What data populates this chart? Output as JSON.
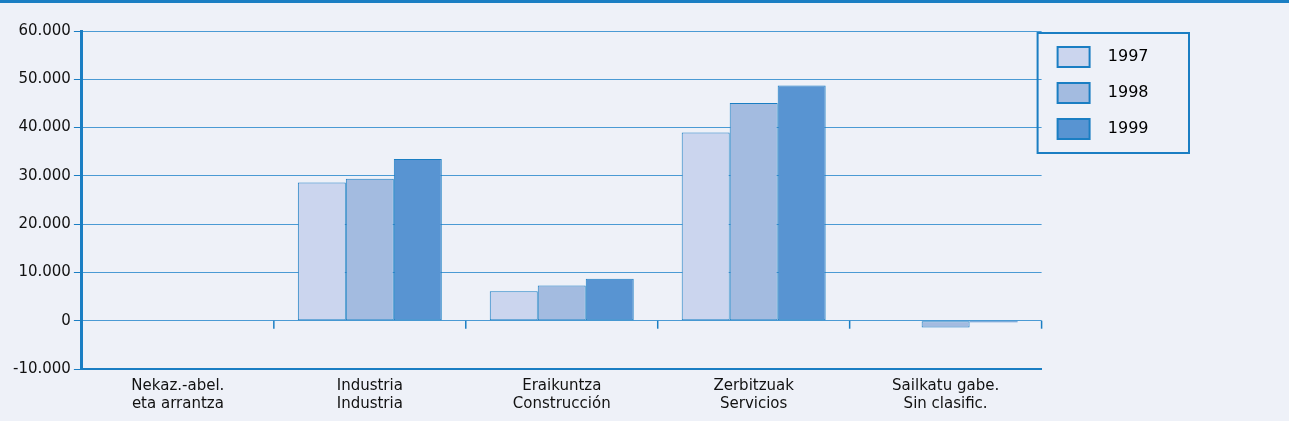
{
  "chart_data": {
    "type": "bar",
    "categories": [
      "Nekaz.-abel.\neta arrantza",
      "Industria\nIndustria",
      "Eraikuntza\nConstrucción",
      "Zerbitzuak\nServicios",
      "Sailkatu gabe.\nSin clasific."
    ],
    "series": [
      {
        "name": "1997",
        "color": "#cbd5ee",
        "values": [
          null,
          28600,
          6100,
          39000,
          null
        ]
      },
      {
        "name": "1998",
        "color": "#a3bbe0",
        "values": [
          null,
          29400,
          7300,
          45100,
          -1400
        ]
      },
      {
        "name": "1999",
        "color": "#5894d2",
        "values": [
          null,
          33500,
          8700,
          48700,
          -300
        ]
      }
    ],
    "ylim": [
      -10000,
      60000
    ],
    "yticks": [
      {
        "value": -10000,
        "label": "-10.000"
      },
      0,
      {
        "value": 10000,
        "label": "10.000"
      },
      {
        "value": 20000,
        "label": "20.000"
      },
      {
        "value": 30000,
        "label": "30.000"
      },
      {
        "value": 40000,
        "label": "40.000"
      },
      {
        "value": 50000,
        "label": "50.000"
      },
      {
        "value": 60000,
        "label": "60.000"
      }
    ],
    "grid": "y",
    "legend": "top right"
  }
}
